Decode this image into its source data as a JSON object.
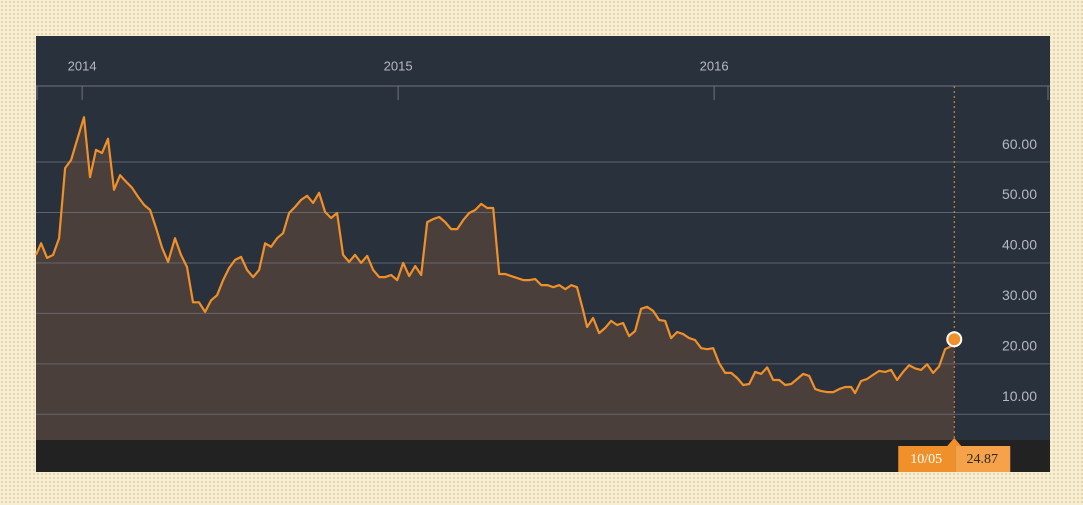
{
  "chart_data": {
    "type": "area",
    "color": "#f0902a",
    "fill": "#4a3f3b",
    "x": [
      2013.854,
      2013.87,
      2013.889,
      2013.908,
      2013.927,
      2013.946,
      2013.965,
      2013.984,
      2014.006,
      2014.025,
      2014.044,
      2014.063,
      2014.082,
      2014.101,
      2014.12,
      2014.139,
      2014.158,
      2014.177,
      2014.196,
      2014.215,
      2014.234,
      2014.253,
      2014.272,
      2014.294,
      2014.313,
      2014.332,
      2014.351,
      2014.37,
      2014.389,
      2014.408,
      2014.427,
      2014.446,
      2014.465,
      2014.484,
      2014.503,
      2014.522,
      2014.541,
      2014.56,
      2014.579,
      2014.598,
      2014.617,
      2014.636,
      2014.655,
      2014.674,
      2014.693,
      2014.712,
      2014.731,
      2014.75,
      2014.769,
      2014.788,
      2014.807,
      2014.826,
      2014.845,
      2014.864,
      2014.883,
      2014.902,
      2014.921,
      2014.94,
      2014.959,
      2014.978,
      2014.997,
      2015.016,
      2015.035,
      2015.054,
      2015.073,
      2015.092,
      2015.111,
      2015.13,
      2015.149,
      2015.168,
      2015.187,
      2015.206,
      2015.225,
      2015.244,
      2015.263,
      2015.282,
      2015.301,
      2015.32,
      2015.339,
      2015.358,
      2015.377,
      2015.396,
      2015.415,
      2015.434,
      2015.453,
      2015.472,
      2015.491,
      2015.51,
      2015.529,
      2015.548,
      2015.566,
      2015.585,
      2015.598,
      2015.617,
      2015.636,
      2015.655,
      2015.674,
      2015.693,
      2015.712,
      2015.731,
      2015.75,
      2015.769,
      2015.788,
      2015.807,
      2015.826,
      2015.845,
      2015.864,
      2015.883,
      2015.902,
      2015.921,
      2015.94,
      2015.959,
      2015.978,
      2015.997,
      2016.016,
      2016.035,
      2016.054,
      2016.073,
      2016.092,
      2016.111,
      2016.13,
      2016.149,
      2016.168,
      2016.187,
      2016.206,
      2016.225,
      2016.244,
      2016.263,
      2016.282,
      2016.301,
      2016.32,
      2016.339,
      2016.358,
      2016.377,
      2016.396,
      2016.415,
      2016.434,
      2016.446,
      2016.465,
      2016.484,
      2016.503,
      2016.522,
      2016.541,
      2016.56,
      2016.579,
      2016.598,
      2016.617,
      2016.636,
      2016.655,
      2016.674,
      2016.693,
      2016.712,
      2016.731,
      2016.75,
      2016.76
    ],
    "values": [
      41.6,
      43.9,
      41.0,
      41.6,
      44.9,
      58.8,
      60.4,
      64.4,
      68.9,
      57.0,
      62.4,
      61.8,
      64.6,
      54.5,
      57.4,
      56.1,
      54.9,
      53.1,
      51.5,
      50.5,
      46.9,
      43.0,
      40.2,
      44.9,
      41.6,
      39.2,
      32.2,
      32.2,
      30.3,
      32.6,
      33.6,
      36.6,
      39.0,
      40.6,
      41.2,
      38.6,
      37.2,
      38.6,
      43.9,
      43.2,
      44.9,
      45.9,
      49.9,
      51.1,
      52.5,
      53.3,
      51.9,
      53.9,
      50.1,
      48.9,
      49.9,
      41.6,
      40.2,
      41.6,
      40.0,
      41.4,
      38.6,
      37.2,
      37.2,
      37.6,
      36.6,
      40.0,
      37.4,
      39.4,
      37.6,
      48.1,
      48.7,
      49.1,
      48.1,
      46.7,
      46.7,
      48.5,
      49.9,
      50.5,
      51.7,
      50.9,
      50.9,
      37.8,
      37.8,
      37.4,
      37.0,
      36.6,
      36.6,
      36.8,
      35.6,
      35.6,
      35.2,
      35.6,
      34.8,
      35.6,
      35.2,
      30.7,
      27.3,
      29.1,
      26.1,
      27.1,
      28.5,
      27.7,
      28.1,
      25.5,
      26.5,
      30.9,
      31.3,
      30.5,
      28.7,
      28.5,
      25.1,
      26.3,
      25.9,
      25.1,
      24.7,
      23.1,
      22.9,
      23.1,
      20.1,
      18.2,
      18.2,
      17.2,
      15.8,
      16.0,
      18.4,
      18.0,
      19.3,
      16.8,
      16.8,
      15.8,
      16.0,
      17.0,
      18.0,
      17.6,
      15.0,
      14.6,
      14.4,
      14.4,
      15.0,
      15.4,
      15.4,
      14.2,
      16.6,
      17.0,
      17.8,
      18.6,
      18.4,
      18.8,
      16.8,
      18.4,
      19.7,
      19.1,
      18.8,
      19.9,
      18.2,
      19.5,
      22.9,
      23.5,
      24.87
    ],
    "xlim": [
      2013.854,
      2017.063
    ],
    "xticks": [
      2014,
      2015,
      2016
    ],
    "ylim": [
      4.9,
      72.3
    ],
    "yticks": [
      {
        "value": 10,
        "label": "10.00"
      },
      {
        "value": 20,
        "label": "20.00"
      },
      {
        "value": 30,
        "label": "30.00"
      },
      {
        "value": 40,
        "label": "40.00"
      },
      {
        "value": 50,
        "label": "50.00"
      },
      {
        "value": 60,
        "label": "60.00"
      }
    ],
    "grid": true,
    "cursor_label": "10/05"
  }
}
